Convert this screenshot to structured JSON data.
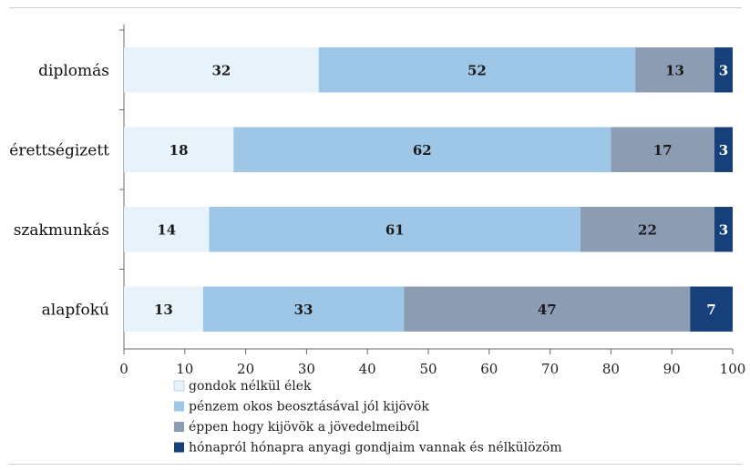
{
  "chart_data": {
    "type": "bar",
    "orientation": "horizontal",
    "stacked": true,
    "categories": [
      "diplomás",
      "érettségizett",
      "szakmunkás",
      "alapfokú"
    ],
    "series": [
      {
        "name": "gondok nélkül élek",
        "values": [
          32,
          18,
          14,
          13
        ],
        "color": "#e8f2fb",
        "label_color": "#1a1a1a"
      },
      {
        "name": "pénzem okos beosztásával jól kijövök",
        "values": [
          52,
          62,
          61,
          33
        ],
        "color": "#9ec6e6",
        "label_color": "#1a1a1a"
      },
      {
        "name": "éppen hogy kijövök a jövedelmeiből",
        "values": [
          13,
          17,
          22,
          47
        ],
        "color": "#8c9cb3",
        "label_color": "#1a1a1a"
      },
      {
        "name": "hónapról hónapra anyagi gondjaim vannak és nélkülözöm",
        "values": [
          3,
          3,
          3,
          7
        ],
        "color": "#17407a",
        "label_color": "#ffffff"
      }
    ],
    "xlim": [
      0,
      100
    ],
    "xticks": [
      "0",
      "10",
      "20",
      "30",
      "40",
      "50",
      "60",
      "70",
      "80",
      "90",
      "100"
    ],
    "grid": false,
    "legend_position": "bottom-left",
    "title": "",
    "xlabel": "",
    "ylabel": ""
  }
}
